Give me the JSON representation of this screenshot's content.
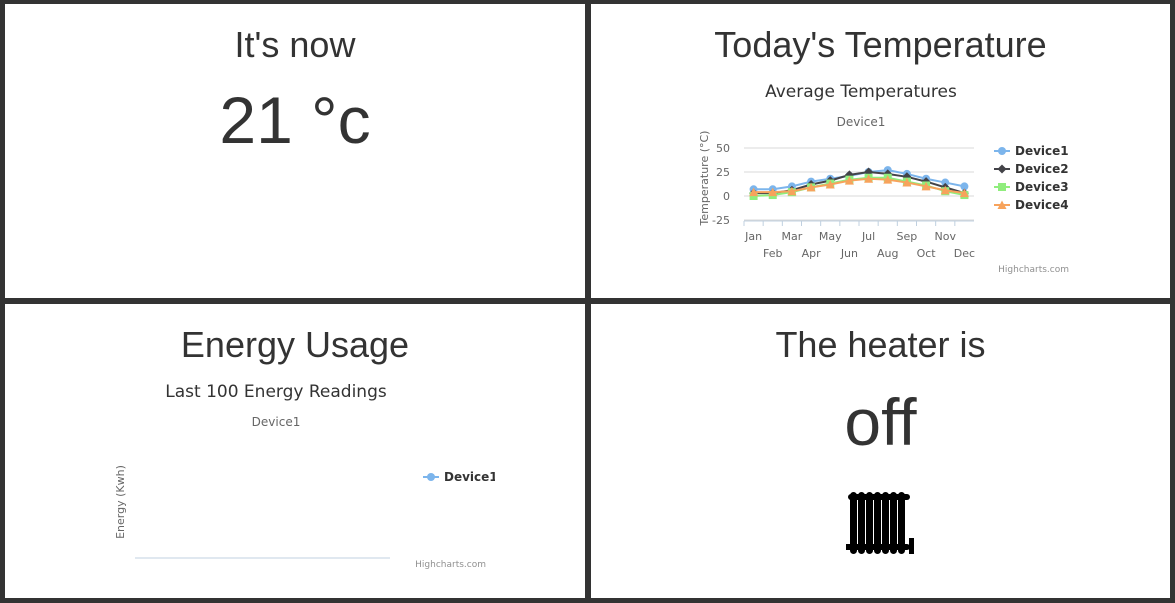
{
  "panels": {
    "now": {
      "title": "It's now",
      "value": "21 °c"
    },
    "temperature": {
      "title": "Today's Temperature"
    },
    "energy": {
      "title": "Energy Usage"
    },
    "heater": {
      "title": "The heater is",
      "state": "off",
      "icon": "radiator-icon"
    }
  },
  "chart_data": [
    {
      "type": "line",
      "title": "Average Temperatures",
      "subtitle": "Device1",
      "ylabel": "Temperature (°C)",
      "xlabel": "",
      "ylim": [
        -25,
        50
      ],
      "yticks": [
        -25,
        0,
        25,
        50
      ],
      "categories": [
        "Jan",
        "Feb",
        "Mar",
        "Apr",
        "May",
        "Jun",
        "Jul",
        "Aug",
        "Sep",
        "Oct",
        "Nov",
        "Dec"
      ],
      "series": [
        {
          "name": "Device1",
          "color": "#7cb5ec",
          "marker": "circle",
          "values": [
            7,
            7,
            10,
            15,
            18,
            21,
            25,
            27,
            23,
            18,
            14,
            10
          ]
        },
        {
          "name": "Device2",
          "color": "#434348",
          "marker": "diamond",
          "values": [
            3,
            3,
            6,
            12,
            16,
            22,
            25,
            23,
            20,
            15,
            9,
            3
          ]
        },
        {
          "name": "Device3",
          "color": "#90ed7d",
          "marker": "square",
          "values": [
            0,
            1,
            4,
            9,
            13,
            17,
            19,
            19,
            15,
            11,
            5,
            1
          ]
        },
        {
          "name": "Device4",
          "color": "#f7a35c",
          "marker": "triangle",
          "values": [
            4,
            4,
            5,
            9,
            12,
            16,
            18,
            17,
            14,
            10,
            6,
            3
          ]
        }
      ],
      "legend": "right",
      "credits": "Highcharts.com"
    },
    {
      "type": "line",
      "title": "Last 100 Energy Readings",
      "subtitle": "Device1",
      "ylabel": "Energy (Kwh)",
      "xlabel": "",
      "series": [
        {
          "name": "Device1",
          "color": "#7cb5ec",
          "marker": "circle",
          "values": []
        }
      ],
      "legend": "right",
      "credits": "Highcharts.com"
    }
  ]
}
